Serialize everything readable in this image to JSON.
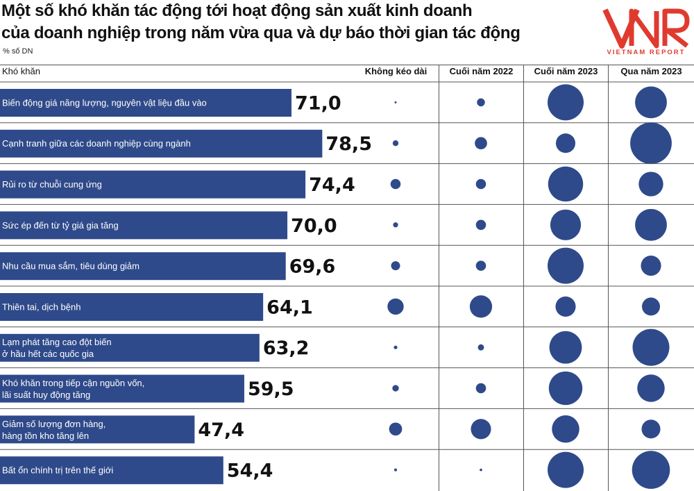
{
  "title_line1": "Một số khó khăn tác động tới hoạt động sản xuất kinh doanh",
  "title_line2": "của doanh nghiệp trong năm vừa qua và dự báo thời gian tác động",
  "unit": "% số DN",
  "logo": {
    "mark": "VNR",
    "subtitle": "VIETNAM REPORT",
    "color": "#e03a2f"
  },
  "colors": {
    "bar": "#2f4a8a",
    "bubble": "#2f4a8a",
    "grid": "#555555"
  },
  "chart_data": {
    "type": "bar",
    "orientation": "horizontal",
    "title": "Một số khó khăn tác động tới hoạt động sản xuất kinh doanh của doanh nghiệp trong năm vừa qua và dự báo thời gian tác động",
    "unit": "% số DN",
    "category_header": "Khó khăn",
    "categories": [
      [
        "Biến động giá năng lượng, nguyên vật liệu đầu vào"
      ],
      [
        "Cạnh tranh giữa các doanh nghiệp cùng ngành"
      ],
      [
        "Rủi ro từ chuỗi cung ứng"
      ],
      [
        "Sức ép đến từ tỷ giá gia tăng"
      ],
      [
        "Nhu cầu mua sắm, tiêu dùng giảm"
      ],
      [
        "Thiên tai, dịch bệnh"
      ],
      [
        "Lạm phát tăng cao đột biến",
        "ở hầu hết các quốc gia"
      ],
      [
        "Khó khăn trong tiếp cận nguồn vốn,",
        "lãi suất huy động tăng"
      ],
      [
        "Giảm số lượng đơn hàng,",
        "hàng tồn kho tăng lên"
      ],
      [
        "Bất ổn chính trị trên thế giới"
      ]
    ],
    "values": [
      71.0,
      78.5,
      74.4,
      70.0,
      69.6,
      64.1,
      63.2,
      59.5,
      47.4,
      54.4
    ],
    "value_labels": [
      "71,0",
      "78,5",
      "74,4",
      "70,0",
      "69,6",
      "64,1",
      "63,2",
      "59,5",
      "47,4",
      "54,4"
    ],
    "duration_headers": [
      "Không kéo dài",
      "Cuối năm 2022",
      "Cuối năm 2023",
      "Qua năm 2023"
    ],
    "duration_bubbles_relative_size": [
      [
        0.05,
        0.22,
        1.0,
        0.88
      ],
      [
        0.16,
        0.34,
        0.54,
        1.15
      ],
      [
        0.28,
        0.28,
        0.97,
        0.68
      ],
      [
        0.14,
        0.28,
        0.85,
        0.88
      ],
      [
        0.25,
        0.28,
        1.0,
        0.56
      ],
      [
        0.45,
        0.62,
        0.56,
        0.5
      ],
      [
        0.1,
        0.17,
        0.9,
        1.02
      ],
      [
        0.18,
        0.28,
        0.93,
        0.76
      ],
      [
        0.36,
        0.56,
        0.76,
        0.52
      ],
      [
        0.08,
        0.07,
        1.0,
        1.05
      ]
    ]
  }
}
